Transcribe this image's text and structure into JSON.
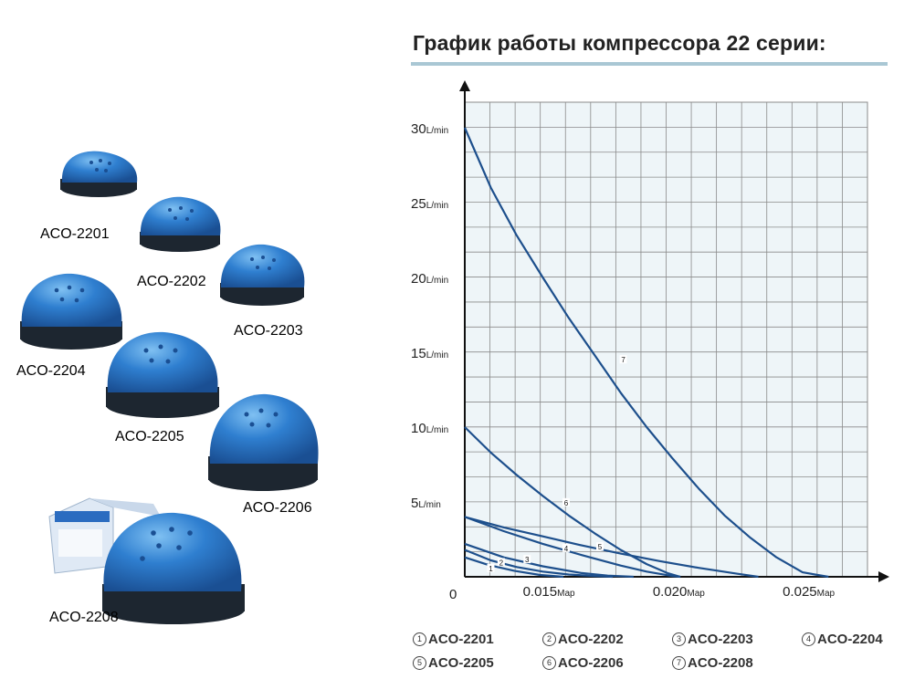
{
  "products": [
    {
      "model": "ACO-2201"
    },
    {
      "model": "ACO-2202"
    },
    {
      "model": "ACO-2203"
    },
    {
      "model": "ACO-2204"
    },
    {
      "model": "ACO-2205"
    },
    {
      "model": "ACO-2206"
    },
    {
      "model": "ACO-2208"
    }
  ],
  "colors": {
    "pump_blue": "#2f7fd0",
    "pump_base": "#1d2630",
    "curve": "#1d4f8c",
    "grid": "#8a8a8a",
    "plot_bg": "#eef5f8"
  },
  "chart_data": {
    "type": "line",
    "title": "График работы компрессора 22 серии:",
    "origin_label": "0",
    "x_ticks": [
      {
        "value": 0.015,
        "num": "0.015",
        "unit": "Map"
      },
      {
        "value": 0.02,
        "num": "0.020",
        "unit": "Map"
      },
      {
        "value": 0.025,
        "num": "0.025",
        "unit": "Map"
      }
    ],
    "y_ticks": [
      {
        "value": 5,
        "num": "5",
        "unit": "L/min"
      },
      {
        "value": 10,
        "num": "10",
        "unit": "L/min"
      },
      {
        "value": 15,
        "num": "15",
        "unit": "L/min"
      },
      {
        "value": 20,
        "num": "20",
        "unit": "L/min"
      },
      {
        "value": 25,
        "num": "25",
        "unit": "L/min"
      },
      {
        "value": 30,
        "num": "30",
        "unit": "L/min"
      }
    ],
    "xlim": [
      0.0115,
      0.027
    ],
    "ylim": [
      0,
      30
    ],
    "grid": true,
    "series": [
      {
        "name": "1",
        "x": [
          0.0115,
          0.0124,
          0.0134,
          0.0144,
          0.0153
        ],
        "y": [
          1.3,
          0.8,
          0.4,
          0.12,
          0
        ]
      },
      {
        "name": "2",
        "x": [
          0.0115,
          0.0125,
          0.0135,
          0.0145,
          0.0155,
          0.0165,
          0.0172
        ],
        "y": [
          1.8,
          1.1,
          0.65,
          0.35,
          0.15,
          0.05,
          0
        ]
      },
      {
        "name": "3",
        "x": [
          0.0115,
          0.013,
          0.0145,
          0.016,
          0.017,
          0.018
        ],
        "y": [
          2.2,
          1.3,
          0.7,
          0.25,
          0.08,
          0
        ]
      },
      {
        "name": "4",
        "x": [
          0.0115,
          0.013,
          0.0145,
          0.016,
          0.0175,
          0.0185,
          0.0195,
          0.0198
        ],
        "y": [
          4.0,
          3.05,
          2.2,
          1.45,
          0.75,
          0.35,
          0.05,
          0
        ]
      },
      {
        "name": "5",
        "x": [
          0.0115,
          0.013,
          0.0145,
          0.016,
          0.0175,
          0.019,
          0.0205,
          0.022,
          0.0228
        ],
        "y": [
          4.0,
          3.3,
          2.7,
          2.1,
          1.55,
          1.05,
          0.6,
          0.2,
          0
        ]
      },
      {
        "name": "6",
        "x": [
          0.0115,
          0.0125,
          0.0135,
          0.0145,
          0.0155,
          0.0165,
          0.0175,
          0.0185,
          0.0193,
          0.0198
        ],
        "y": [
          10.0,
          8.3,
          6.8,
          5.4,
          4.1,
          2.9,
          1.8,
          0.85,
          0.25,
          0
        ]
      },
      {
        "name": "7",
        "x": [
          0.0115,
          0.0125,
          0.0135,
          0.0145,
          0.0155,
          0.0165,
          0.0175,
          0.0185,
          0.0195,
          0.0205,
          0.0215,
          0.0225,
          0.0235,
          0.0245,
          0.0255
        ],
        "y": [
          30.0,
          26.0,
          22.8,
          20.0,
          17.3,
          14.8,
          12.3,
          10.0,
          7.9,
          5.9,
          4.1,
          2.6,
          1.3,
          0.3,
          0
        ]
      }
    ],
    "curve_labels": [
      {
        "text": "1",
        "x": 0.0125,
        "y": 0.55
      },
      {
        "text": "2",
        "x": 0.0129,
        "y": 0.95
      },
      {
        "text": "3",
        "x": 0.0139,
        "y": 1.15
      },
      {
        "text": "4",
        "x": 0.0154,
        "y": 1.9
      },
      {
        "text": "5",
        "x": 0.0167,
        "y": 2.0
      },
      {
        "text": "6",
        "x": 0.0154,
        "y": 4.95
      },
      {
        "text": "7",
        "x": 0.0176,
        "y": 14.5
      }
    ],
    "legend": [
      {
        "marker": "1",
        "label": "ACO-2201"
      },
      {
        "marker": "2",
        "label": "ACO-2202"
      },
      {
        "marker": "3",
        "label": "ACO-2203"
      },
      {
        "marker": "4",
        "label": "ACO-2204"
      },
      {
        "marker": "5",
        "label": "ACO-2205"
      },
      {
        "marker": "6",
        "label": "ACO-2206"
      },
      {
        "marker": "7",
        "label": "ACO-2208"
      }
    ]
  }
}
